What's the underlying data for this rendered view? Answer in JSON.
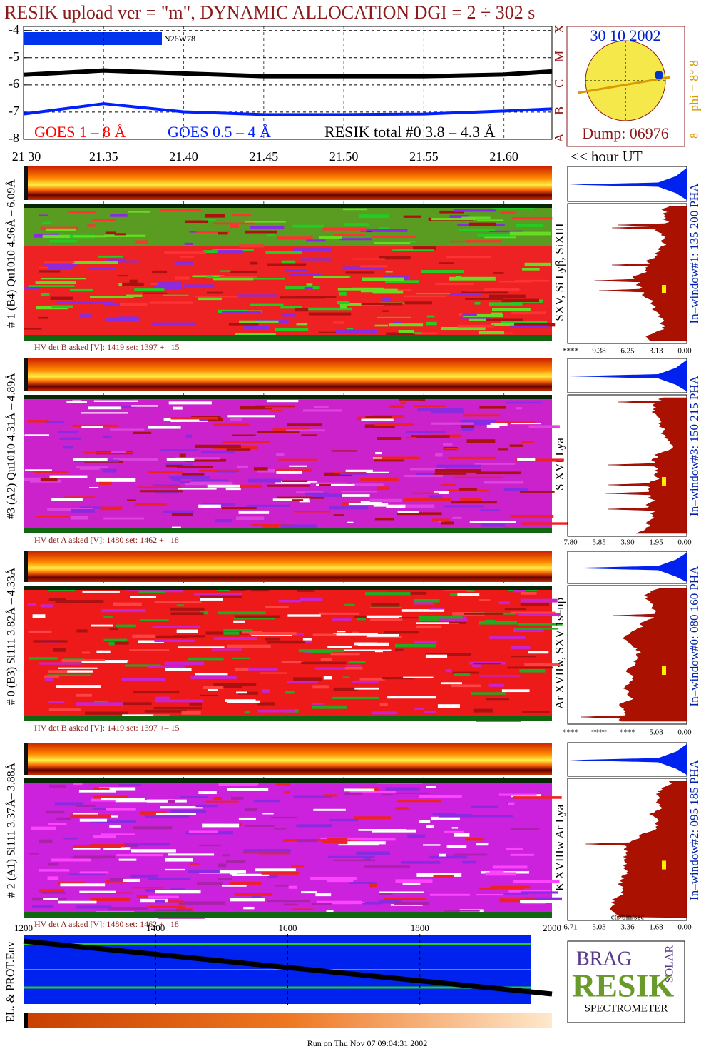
{
  "chart_data": {
    "type": "line",
    "title": "RESIK upload ver = \"m\", DYNAMIC ALLOCATION  DGI =   2 ÷ 302 s",
    "annotation": "N26W78",
    "x_label": "<< hour UT",
    "x": [
      21.3,
      21.35,
      21.4,
      21.45,
      21.5,
      21.55,
      21.6,
      21.63
    ],
    "xlim": [
      21.3,
      21.63
    ],
    "xticks": [
      {
        "value": 21.3,
        "label": "21 30"
      },
      21.35,
      {
        "value": 21.4,
        "label": "21.40"
      },
      21.45,
      {
        "value": 21.5,
        "label": "21.50"
      },
      21.55,
      {
        "value": 21.6,
        "label": "21.60"
      }
    ],
    "ylim": [
      -8,
      -3.85
    ],
    "yticks": [
      -4,
      -5,
      -6,
      -7,
      -8
    ],
    "grid": true,
    "series": [
      {
        "name": "GOES 1 – 8 Å",
        "color": "#ff0000",
        "values": [
          -5.6,
          -5.44,
          -5.55,
          -5.65,
          -5.65,
          -5.65,
          -5.6,
          -5.48
        ]
      },
      {
        "name": "GOES 0.5 – 4 Å",
        "color": "#0020ff",
        "values": [
          -7.07,
          -6.69,
          -6.99,
          -7.09,
          -7.09,
          -7.07,
          -6.96,
          -6.88
        ]
      },
      {
        "name": "RESIK total #0  3.8 – 4.3 Å",
        "color": "#000000",
        "values": [
          -5.63,
          -5.47,
          -5.58,
          -5.68,
          -5.68,
          -5.68,
          -5.62,
          -5.5
        ]
      }
    ]
  },
  "side_panel": {
    "date": "30 10 2002",
    "dump": "Dump: 06976",
    "classes": [
      "A",
      "B",
      "C",
      "M",
      "X"
    ],
    "phi": "phi =  8°  8",
    "phi_end": "8"
  },
  "panels": [
    {
      "label": "# 1 (B4) Qu1010 4.96Å – 6.09Å",
      "hv": "HV det B asked [V]:  1419 set:  1397 +–   15",
      "lines": "SXV, Si Lyβ, SiXIII",
      "pha": "In–window#1:  135 200 PHA",
      "hist_ticks": [
        "****",
        "9.38",
        "6.25",
        "3.13",
        "0.00"
      ]
    },
    {
      "label": "#3 (A2) Qu1010  4.31Å – 4.89Å",
      "hv": "HV det A asked [V]:  1480 set:  1462 +–   18",
      "lines": "S XVI Lya",
      "pha": "In–window#3:  150 215 PHA",
      "hist_ticks": [
        "7.80",
        "5.85",
        "3.90",
        "1.95",
        "0.00"
      ]
    },
    {
      "label": "# 0 (B3) Si111  3.82Å – 4.33Å",
      "hv": "HV det B asked [V]:  1419 set:  1397 +–   15",
      "lines": "Ar XVIIw, SXV 1s–np",
      "pha": "In–window#0:  080 160 PHA",
      "hist_ticks": [
        "****",
        "****",
        "****",
        "5.08",
        "0.00"
      ]
    },
    {
      "label": "# 2 (A1) Si111  3.37Å– 3.88Å",
      "hv": "HV det A asked [V]:  1480 set:  1462 +–   18",
      "lines": "K XVIIIw  Ar Lya",
      "pha": "In–window#2:  095 185 PHA",
      "hist_ticks": [
        "6.71",
        "5.03",
        "3.36",
        "1.68",
        "0.00"
      ]
    }
  ],
  "hist_unit": "cts/bin/sec",
  "bottom_panel": {
    "label": "EL. & PROT.Env",
    "xticks": [
      1200,
      1400,
      1600,
      1800,
      2000
    ]
  },
  "logo": {
    "brag": "BRAG",
    "resik": "RESIK",
    "solar": "SOLAR",
    "name": "SPECTROMETER"
  },
  "footer": "Run on Thu Nov 07 09:04:31 2002"
}
